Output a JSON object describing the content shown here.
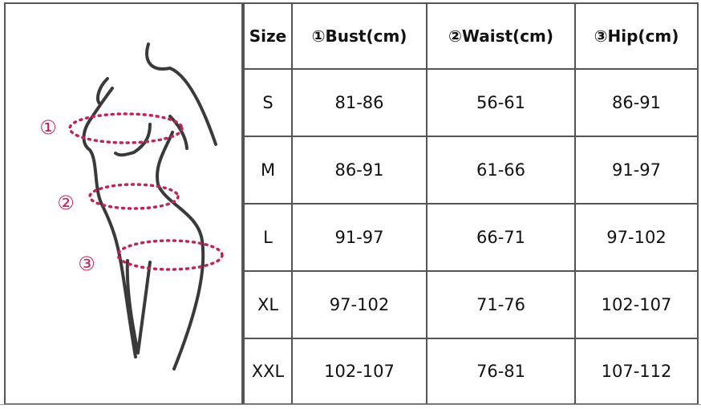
{
  "figure": {
    "markers": [
      "①",
      "②",
      "③"
    ],
    "accent_color": "#c0255a"
  },
  "table": {
    "headers": [
      "Size",
      "①Bust(cm)",
      "②Waist(cm)",
      "③Hip(cm)"
    ],
    "rows": [
      [
        "S",
        "81-86",
        "56-61",
        "86-91"
      ],
      [
        "M",
        "86-91",
        "61-66",
        "91-97"
      ],
      [
        "L",
        "91-97",
        "66-71",
        "97-102"
      ],
      [
        "XL",
        "97-102",
        "71-76",
        "102-107"
      ],
      [
        "XXL",
        "102-107",
        "76-81",
        "107-112"
      ]
    ]
  }
}
